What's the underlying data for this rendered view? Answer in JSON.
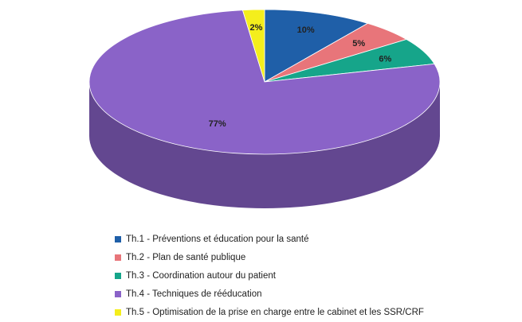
{
  "chart_data": {
    "type": "pie",
    "variant": "3d",
    "start_angle": "12 o'clock",
    "direction": "clockwise",
    "slices": [
      {
        "name": "Th.1 - Préventions et éducation pour la santé",
        "value": 10,
        "label": "10%",
        "color": "#1f5fa8"
      },
      {
        "name": "Th.2 - Plan de santé publique",
        "value": 5,
        "label": "5%",
        "color": "#e8757a"
      },
      {
        "name": "Th.3 - Coordination autour du patient",
        "value": 6,
        "label": "6%",
        "color": "#16a58a"
      },
      {
        "name": "Th.4 - Techniques de rééducation",
        "value": 77,
        "label": "77%",
        "color": "#8a63c8"
      },
      {
        "name": "Th.5 - Optimisation de la prise en charge entre le cabinet et les SSR/CRF",
        "value": 2,
        "label": "2%",
        "color": "#f4ee1c"
      }
    ],
    "legend_position": "bottom"
  }
}
